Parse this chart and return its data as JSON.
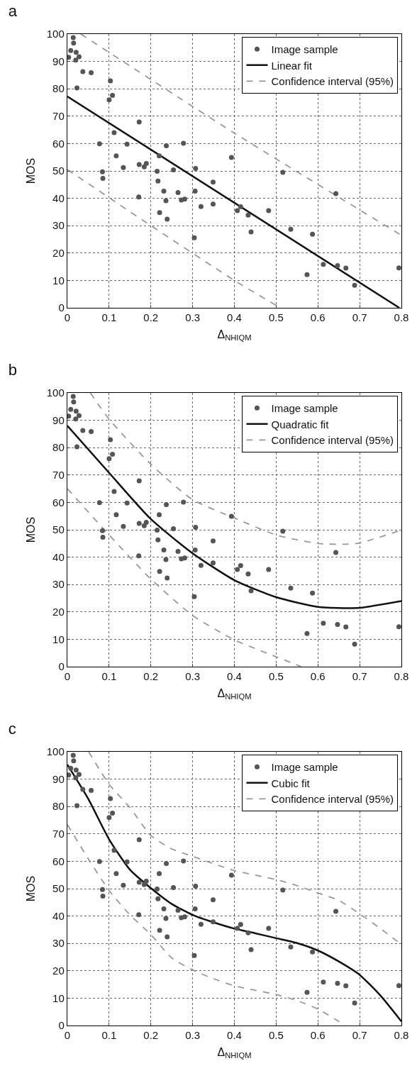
{
  "chart_data": [
    {
      "type": "scatter",
      "title": "a",
      "xlabel": "Δ$_{NHIQM}$",
      "ylabel": "MOS",
      "xlim": [
        0,
        0.8
      ],
      "ylim": [
        0,
        100
      ],
      "xticks": [
        0,
        0.1,
        0.2,
        0.3,
        0.4,
        0.5,
        0.6,
        0.7,
        0.8
      ],
      "yticks": [
        0,
        10,
        20,
        30,
        40,
        50,
        60,
        70,
        80,
        90,
        100
      ],
      "grid": true,
      "legend": "top right",
      "series": [
        {
          "name": "Image sample",
          "marker": "circle",
          "color": "#555555",
          "x": [
            0.003,
            0.008,
            0.014,
            0.015,
            0.021,
            0.02,
            0.028,
            0.023,
            0.037,
            0.057,
            0.077,
            0.084,
            0.085,
            0.1,
            0.103,
            0.108,
            0.112,
            0.117,
            0.134,
            0.143,
            0.171,
            0.172,
            0.172,
            0.184,
            0.189,
            0.215,
            0.217,
            0.22,
            0.221,
            0.231,
            0.236,
            0.237,
            0.239,
            0.254,
            0.265,
            0.273,
            0.281,
            0.278,
            0.304,
            0.306,
            0.307,
            0.32,
            0.349,
            0.349,
            0.393,
            0.407,
            0.415,
            0.433,
            0.44,
            0.482,
            0.516,
            0.535,
            0.574,
            0.587,
            0.613,
            0.643,
            0.647,
            0.667,
            0.688,
            0.794
          ],
          "values": [
            91.5,
            94,
            98.7,
            96.7,
            93.3,
            90.5,
            91.7,
            80.3,
            86.3,
            85.9,
            59.9,
            49.7,
            47.3,
            76,
            82.9,
            77.6,
            64,
            55.5,
            51.2,
            59.8,
            40.5,
            52.3,
            67.9,
            51.5,
            52.7,
            49.9,
            46.3,
            55.5,
            34.8,
            42.6,
            39.1,
            59.2,
            32.4,
            50.4,
            42.1,
            39.4,
            39.7,
            60.1,
            25.6,
            42.6,
            50.9,
            37,
            45.9,
            37.9,
            54.9,
            35.5,
            36.9,
            33.9,
            27.7,
            35.5,
            49.5,
            28.7,
            12.1,
            26.9,
            15.9,
            41.7,
            15.4,
            14.5,
            8.2,
            14.6
          ]
        },
        {
          "name": "Linear fit",
          "type": "line",
          "line_style": "solid",
          "color": "#111111",
          "x": [
            0,
            0.795
          ],
          "values": [
            77.2,
            0
          ]
        },
        {
          "name": "Confidence interval (95%)",
          "type": "line",
          "line_style": "dashed",
          "color": "#999999",
          "x": [
            0.032,
            0.4,
            0.8
          ],
          "values": [
            100,
            63.8,
            26.5
          ]
        },
        {
          "type": "line",
          "line_style": "dashed",
          "color": "#999999",
          "x": [
            0,
            0.2,
            0.4,
            0.51
          ],
          "values": [
            50.5,
            30,
            10,
            0
          ]
        }
      ]
    },
    {
      "type": "scatter",
      "title": "b",
      "xlabel": "Δ$_{NHIQM}$",
      "ylabel": "MOS",
      "xlim": [
        0,
        0.8
      ],
      "ylim": [
        0,
        100
      ],
      "xticks": [
        0,
        0.1,
        0.2,
        0.3,
        0.4,
        0.5,
        0.6,
        0.7,
        0.8
      ],
      "yticks": [
        0,
        10,
        20,
        30,
        40,
        50,
        60,
        70,
        80,
        90,
        100
      ],
      "grid": true,
      "legend": "top right",
      "series": [
        {
          "name": "Image sample",
          "marker": "circle",
          "color": "#555555",
          "x": [
            0.003,
            0.008,
            0.014,
            0.015,
            0.021,
            0.02,
            0.028,
            0.023,
            0.037,
            0.057,
            0.077,
            0.084,
            0.085,
            0.1,
            0.103,
            0.108,
            0.112,
            0.117,
            0.134,
            0.143,
            0.171,
            0.172,
            0.172,
            0.184,
            0.189,
            0.215,
            0.217,
            0.22,
            0.221,
            0.231,
            0.236,
            0.237,
            0.239,
            0.254,
            0.265,
            0.273,
            0.281,
            0.278,
            0.304,
            0.306,
            0.307,
            0.32,
            0.349,
            0.349,
            0.393,
            0.407,
            0.415,
            0.433,
            0.44,
            0.482,
            0.516,
            0.535,
            0.574,
            0.587,
            0.613,
            0.643,
            0.647,
            0.667,
            0.688,
            0.794
          ],
          "values": [
            91.5,
            94,
            98.7,
            96.7,
            93.3,
            90.5,
            91.7,
            80.3,
            86.3,
            85.9,
            59.9,
            49.7,
            47.3,
            76,
            82.9,
            77.6,
            64,
            55.5,
            51.2,
            59.8,
            40.5,
            52.3,
            67.9,
            51.5,
            52.7,
            49.9,
            46.3,
            55.5,
            34.8,
            42.6,
            39.1,
            59.2,
            32.4,
            50.4,
            42.1,
            39.4,
            39.7,
            60.1,
            25.6,
            42.6,
            50.9,
            37,
            45.9,
            37.9,
            54.9,
            35.5,
            36.9,
            33.9,
            27.7,
            35.5,
            49.5,
            28.7,
            12.1,
            26.9,
            15.9,
            41.7,
            15.4,
            14.5,
            8.2,
            14.6
          ]
        },
        {
          "name": "Quadratic fit",
          "type": "line",
          "line_style": "solid",
          "color": "#111111",
          "x": [
            0,
            0.1,
            0.2,
            0.3,
            0.4,
            0.5,
            0.6,
            0.66,
            0.7,
            0.8
          ],
          "values": [
            88,
            70.8,
            53.9,
            41.4,
            31.6,
            25.4,
            21.8,
            21.4,
            21.5,
            24
          ]
        },
        {
          "name": "Confidence interval (95%)",
          "type": "line",
          "line_style": "dashed",
          "color": "#999999",
          "x": [
            0.055,
            0.1,
            0.2,
            0.3,
            0.4,
            0.5,
            0.6,
            0.66,
            0.7,
            0.8
          ],
          "values": [
            100,
            90.4,
            73.9,
            61,
            54.3,
            48.1,
            45,
            44.7,
            45.2,
            49.9
          ]
        },
        {
          "type": "line",
          "line_style": "dashed",
          "color": "#999999",
          "x": [
            0,
            0.1,
            0.2,
            0.3,
            0.4,
            0.5,
            0.56
          ],
          "values": [
            65,
            48.1,
            32,
            18.7,
            9.8,
            3.6,
            0
          ]
        }
      ]
    },
    {
      "type": "scatter",
      "title": "c",
      "xlabel": "Δ$_{NHIQM}$",
      "ylabel": "MOS",
      "xlim": [
        0,
        0.8
      ],
      "ylim": [
        0,
        100
      ],
      "xticks": [
        0,
        0.1,
        0.2,
        0.3,
        0.4,
        0.5,
        0.6,
        0.7,
        0.8
      ],
      "yticks": [
        0,
        10,
        20,
        30,
        40,
        50,
        60,
        70,
        80,
        90,
        100
      ],
      "grid": true,
      "legend": "top right",
      "series": [
        {
          "name": "Image sample",
          "marker": "circle",
          "color": "#555555",
          "x": [
            0.003,
            0.008,
            0.014,
            0.015,
            0.021,
            0.02,
            0.028,
            0.023,
            0.037,
            0.057,
            0.077,
            0.084,
            0.085,
            0.1,
            0.103,
            0.108,
            0.112,
            0.117,
            0.134,
            0.143,
            0.171,
            0.172,
            0.172,
            0.184,
            0.189,
            0.215,
            0.217,
            0.22,
            0.221,
            0.231,
            0.236,
            0.237,
            0.239,
            0.254,
            0.265,
            0.273,
            0.281,
            0.278,
            0.304,
            0.306,
            0.307,
            0.32,
            0.349,
            0.349,
            0.393,
            0.407,
            0.415,
            0.433,
            0.44,
            0.482,
            0.516,
            0.535,
            0.574,
            0.587,
            0.613,
            0.643,
            0.647,
            0.667,
            0.688,
            0.794
          ],
          "values": [
            91.5,
            94,
            98.7,
            96.7,
            93.3,
            90.5,
            91.7,
            80.3,
            86.3,
            85.9,
            59.9,
            49.7,
            47.3,
            76,
            82.9,
            77.6,
            64,
            55.5,
            51.2,
            59.8,
            40.5,
            52.3,
            67.9,
            51.5,
            52.7,
            49.9,
            46.3,
            55.5,
            34.8,
            42.6,
            39.1,
            59.2,
            32.4,
            50.4,
            42.1,
            39.4,
            39.7,
            60.1,
            25.6,
            42.6,
            50.9,
            37,
            45.9,
            37.9,
            54.9,
            35.5,
            36.9,
            33.9,
            27.7,
            35.5,
            49.5,
            28.7,
            12.1,
            26.9,
            15.9,
            41.7,
            15.4,
            14.5,
            8.2,
            14.6
          ]
        },
        {
          "name": "Cubic fit",
          "type": "line",
          "line_style": "solid",
          "color": "#111111",
          "x": [
            0,
            0.05,
            0.1,
            0.15,
            0.2,
            0.25,
            0.3,
            0.35,
            0.4,
            0.45,
            0.5,
            0.55,
            0.6,
            0.65,
            0.7,
            0.75,
            0.8
          ],
          "values": [
            95.3,
            82.8,
            68,
            56.9,
            50.2,
            44.4,
            40.4,
            37.7,
            35.4,
            33.7,
            31.9,
            30.1,
            27.4,
            23.4,
            18.5,
            10.9,
            1.5
          ]
        },
        {
          "name": "Confidence interval (95%)",
          "type": "line",
          "line_style": "dashed",
          "color": "#999999",
          "x": [
            0.051,
            0.1,
            0.15,
            0.2,
            0.25,
            0.3,
            0.35,
            0.4,
            0.5,
            0.55,
            0.6,
            0.65,
            0.7,
            0.75,
            0.8
          ],
          "values": [
            100,
            88.1,
            79.6,
            69.4,
            64.5,
            61.8,
            59.1,
            56.6,
            53.3,
            51.1,
            48.4,
            45.7,
            40.8,
            35.4,
            29.6
          ]
        },
        {
          "type": "line",
          "line_style": "dashed",
          "color": "#999999",
          "x": [
            0,
            0.05,
            0.1,
            0.15,
            0.2,
            0.25,
            0.3,
            0.35,
            0.4,
            0.5,
            0.55,
            0.6,
            0.65,
            0.665
          ],
          "values": [
            73.4,
            60.9,
            49.3,
            40.4,
            33.2,
            24.7,
            20.3,
            17.1,
            14.5,
            11.3,
            9.1,
            6,
            1.5,
            0
          ]
        }
      ]
    }
  ]
}
